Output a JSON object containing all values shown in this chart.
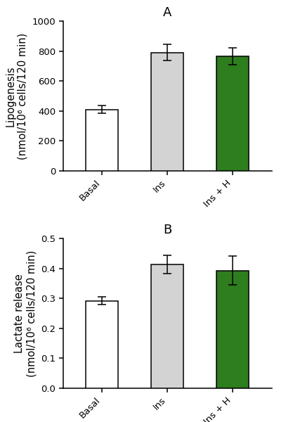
{
  "panel_A": {
    "label": "A",
    "categories": [
      "Basal",
      "Ins",
      "Ins + H"
    ],
    "values": [
      410,
      790,
      765
    ],
    "errors": [
      25,
      55,
      55
    ],
    "bar_colors": [
      "#ffffff",
      "#d3d3d3",
      "#2e7d1e"
    ],
    "bar_edgecolor": "#000000",
    "ylabel": "Lipogenesis\n(nmol/10⁶ cells/120 min)",
    "ylim": [
      0,
      1000
    ],
    "yticks": [
      0,
      200,
      400,
      600,
      800,
      1000
    ]
  },
  "panel_B": {
    "label": "B",
    "categories": [
      "Basal",
      "Ins",
      "Ins + H"
    ],
    "values": [
      0.292,
      0.413,
      0.393
    ],
    "errors": [
      0.013,
      0.03,
      0.048
    ],
    "bar_colors": [
      "#ffffff",
      "#d3d3d3",
      "#2e7d1e"
    ],
    "bar_edgecolor": "#000000",
    "ylabel": "Lactate release\n(nmol/10⁶ cells/120 min)",
    "ylim": [
      0,
      0.5
    ],
    "yticks": [
      0.0,
      0.1,
      0.2,
      0.3,
      0.4,
      0.5
    ]
  },
  "background_color": "#ffffff",
  "bar_width": 0.5,
  "capsize": 4,
  "tick_fontsize": 9.5,
  "label_fontsize": 10.5,
  "panel_label_fontsize": 13
}
